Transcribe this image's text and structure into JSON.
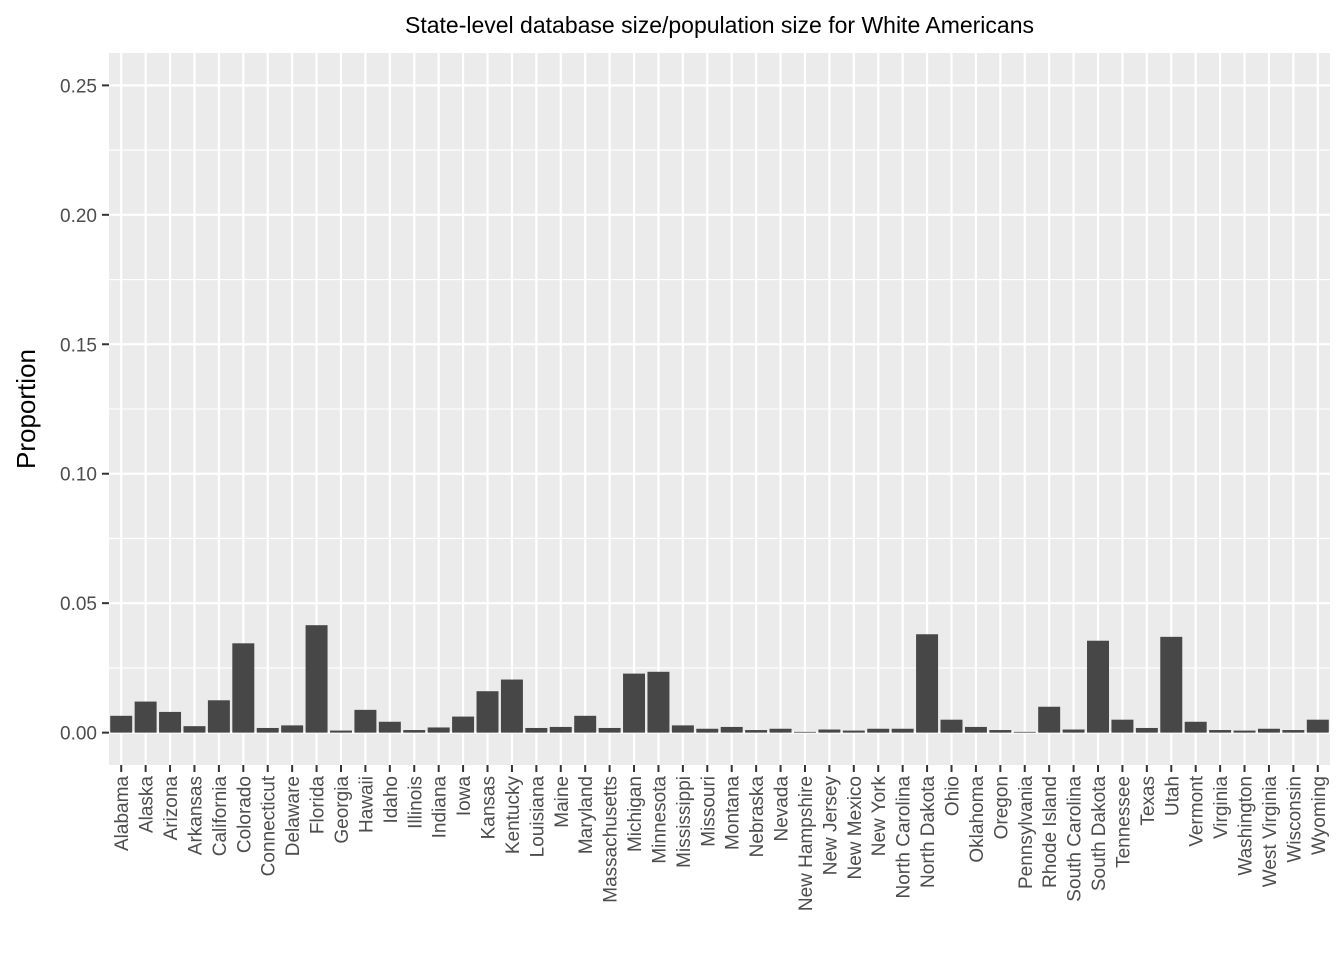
{
  "chart_data": {
    "type": "bar",
    "title": "State-level database size/population size for White Americans",
    "xlabel": "",
    "ylabel": "Proportion",
    "ylim": [
      -0.0125,
      0.2625
    ],
    "yticks": [
      0.0,
      0.05,
      0.1,
      0.15,
      0.2,
      0.25
    ],
    "ytick_labels": [
      "0.00",
      "0.05",
      "0.10",
      "0.15",
      "0.20",
      "0.25"
    ],
    "grid": true,
    "legend": "none",
    "colors": {
      "bar": "#474747",
      "panel": "#ebebeb",
      "grid": "#ffffff",
      "tick": "#4d4d4d"
    },
    "categories": [
      "Alabama",
      "Alaska",
      "Arizona",
      "Arkansas",
      "California",
      "Colorado",
      "Connecticut",
      "Delaware",
      "Florida",
      "Georgia",
      "Hawaii",
      "Idaho",
      "Illinois",
      "Indiana",
      "Iowa",
      "Kansas",
      "Kentucky",
      "Louisiana",
      "Maine",
      "Maryland",
      "Massachusetts",
      "Michigan",
      "Minnesota",
      "Mississippi",
      "Missouri",
      "Montana",
      "Nebraska",
      "Nevada",
      "New Hampshire",
      "New Jersey",
      "New Mexico",
      "New York",
      "North Carolina",
      "North Dakota",
      "Ohio",
      "Oklahoma",
      "Oregon",
      "Pennsylvania",
      "Rhode Island",
      "South Carolina",
      "South Dakota",
      "Tennessee",
      "Texas",
      "Utah",
      "Vermont",
      "Virginia",
      "Washington",
      "West Virginia",
      "Wisconsin",
      "Wyoming"
    ],
    "values": [
      0.0065,
      0.012,
      0.008,
      0.0025,
      0.0125,
      0.0345,
      0.0018,
      0.0028,
      0.0415,
      0.0008,
      0.0088,
      0.0042,
      0.001,
      0.002,
      0.0062,
      0.016,
      0.0205,
      0.0018,
      0.0022,
      0.0065,
      0.0018,
      0.0228,
      0.0235,
      0.0028,
      0.0015,
      0.0022,
      0.001,
      0.0015,
      0.0003,
      0.0012,
      0.0008,
      0.0015,
      0.0015,
      0.038,
      0.005,
      0.0022,
      0.001,
      0.0003,
      0.01,
      0.0012,
      0.0355,
      0.005,
      0.0018,
      0.037,
      0.0042,
      0.001,
      0.0008,
      0.0015,
      0.001,
      0.005
    ]
  }
}
